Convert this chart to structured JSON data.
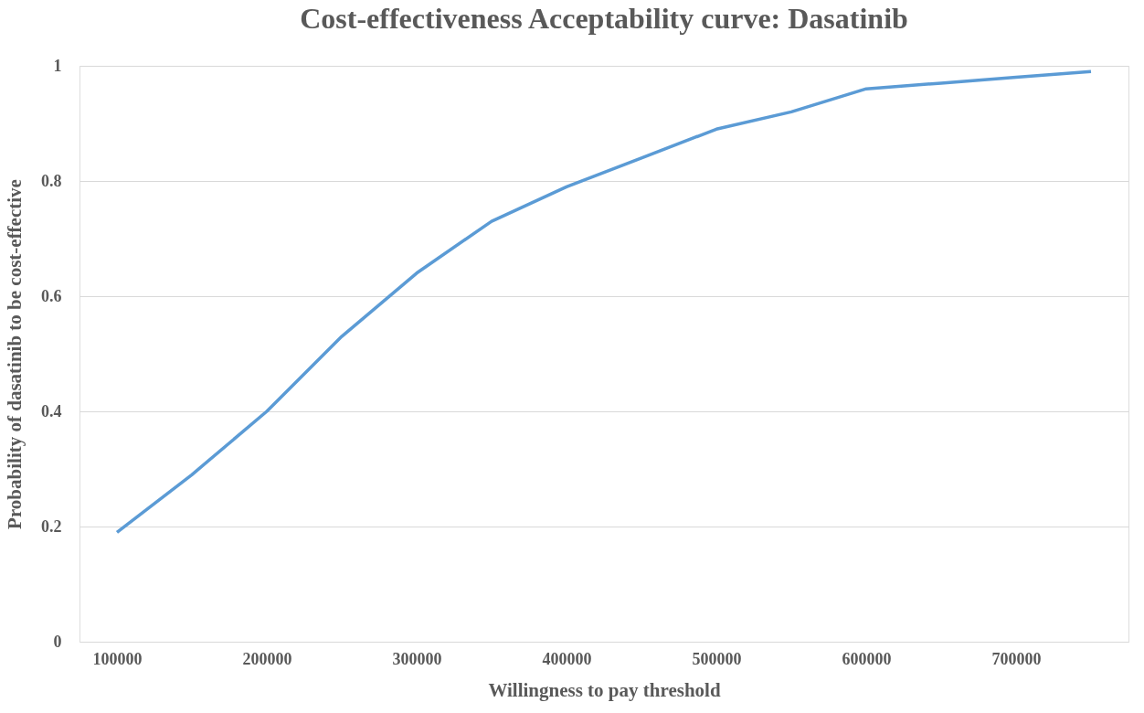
{
  "chart_data": {
    "type": "line",
    "title": "Cost-effectiveness Acceptability curve: Dasatinib",
    "xlabel": "Willingness to pay threshold",
    "ylabel": "Probability of dasatinib to be cost-effective",
    "x": [
      100000,
      150000,
      200000,
      250000,
      300000,
      350000,
      400000,
      450000,
      500000,
      550000,
      600000,
      650000,
      700000,
      750000
    ],
    "series": [
      {
        "color": "#5b9bd5",
        "values": [
          0.19,
          0.29,
          0.4,
          0.53,
          0.64,
          0.73,
          0.79,
          0.84,
          0.89,
          0.92,
          0.96,
          0.97,
          0.98,
          0.99
        ]
      }
    ],
    "xlim": [
      75000,
      775000
    ],
    "xticks": [
      100000,
      200000,
      300000,
      400000,
      500000,
      600000,
      700000
    ],
    "ylim": [
      0,
      1
    ],
    "yticks": [
      0,
      0.2,
      0.4,
      0.6,
      0.8,
      1
    ],
    "grid": "y",
    "marker": "none",
    "line_style": "solid"
  }
}
